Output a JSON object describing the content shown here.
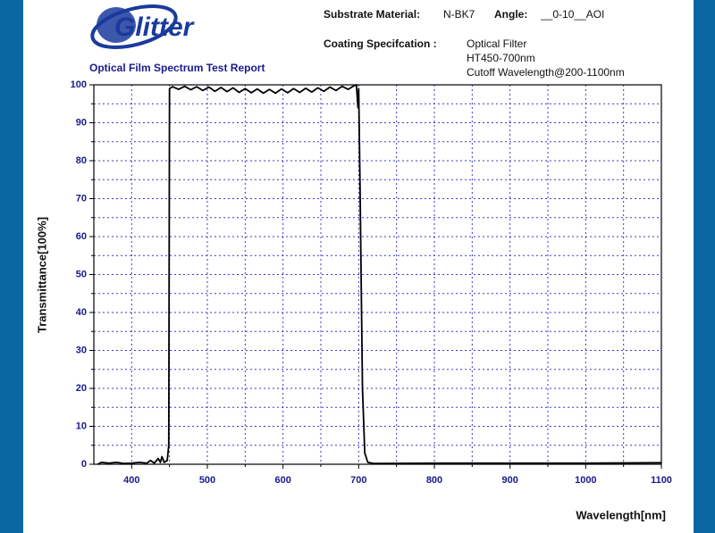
{
  "header": {
    "logo": "Glitter",
    "report_title": "Optical Film Spectrum Test Report",
    "substrate_label": "Substrate Material:",
    "substrate_value": "N-BK7",
    "angle_label": "Angle:",
    "angle_value": "__0-10__AOI",
    "coating_label": "Coating Specifcation :",
    "coating_lines": [
      "Optical Filter",
      "HT450-700nm",
      "Cutoff Wavelength@200-1100nm"
    ]
  },
  "chart_data": {
    "type": "line",
    "x_label": "Wavelength[nm]",
    "y_label": "Transmittance[100%]",
    "xlim": [
      350,
      1100
    ],
    "ylim": [
      0,
      100
    ],
    "xticks": [
      400,
      500,
      600,
      700,
      800,
      900,
      1000,
      1100
    ],
    "yticks": [
      0,
      10,
      20,
      30,
      40,
      50,
      60,
      70,
      80,
      90,
      100
    ],
    "grid": true,
    "grid_color": "#3a3acc",
    "series": [
      {
        "color": "#000000",
        "x": [
          355,
          360,
          370,
          380,
          390,
          400,
          410,
          420,
          425,
          430,
          435,
          438,
          440,
          443,
          447,
          449,
          450,
          454,
          462,
          470,
          478,
          486,
          494,
          502,
          510,
          518,
          526,
          534,
          542,
          550,
          558,
          566,
          574,
          582,
          590,
          598,
          606,
          614,
          622,
          630,
          638,
          646,
          654,
          662,
          670,
          678,
          686,
          694,
          697,
          699,
          700,
          702,
          705,
          708,
          712,
          720,
          800,
          900,
          1000,
          1100
        ],
        "values": [
          0,
          0.5,
          0.3,
          0.5,
          0.2,
          0.3,
          0.5,
          0.3,
          1,
          0.3,
          1.5,
          0.5,
          2,
          0.5,
          1,
          5,
          99,
          99.5,
          98.8,
          99.6,
          98.7,
          99.5,
          98.5,
          99.4,
          98.3,
          99.3,
          98.2,
          99.2,
          98,
          99,
          97.9,
          98.9,
          97.8,
          98.8,
          97.8,
          98.9,
          97.9,
          99,
          98,
          99.1,
          98.1,
          99.2,
          98.3,
          99.4,
          98.5,
          99.6,
          98.8,
          99.8,
          100,
          94,
          99,
          70,
          20,
          3,
          0.5,
          0.2,
          0.3,
          0.3,
          0.3,
          0.4
        ]
      }
    ]
  }
}
